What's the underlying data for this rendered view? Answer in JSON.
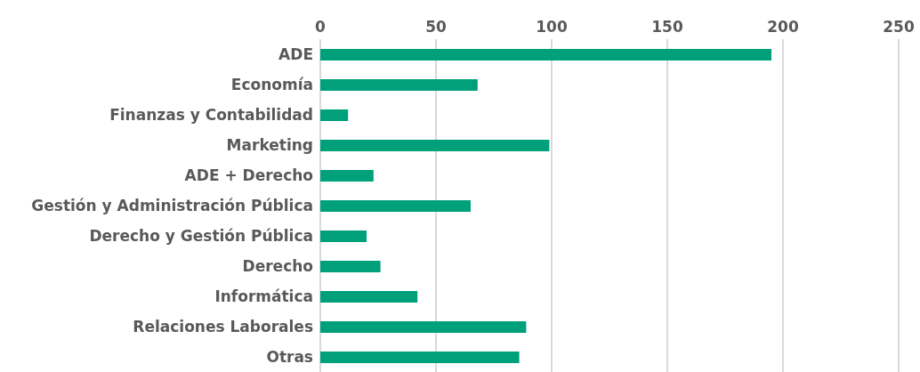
{
  "chart_data": {
    "type": "bar",
    "orientation": "horizontal",
    "categories": [
      "ADE",
      "Economía",
      "Finanzas y Contabilidad",
      "Marketing",
      "ADE + Derecho",
      "Gestión y Administración Pública",
      "Derecho y Gestión Pública",
      "Derecho",
      "Informática",
      "Relaciones Laborales",
      "Otras"
    ],
    "values": [
      195,
      68,
      12,
      99,
      23,
      65,
      20,
      26,
      42,
      89,
      86
    ],
    "color": "#00a07a",
    "xlim": [
      0,
      250
    ],
    "xticks": [
      0,
      50,
      100,
      150,
      200,
      250
    ],
    "grid": "x"
  }
}
